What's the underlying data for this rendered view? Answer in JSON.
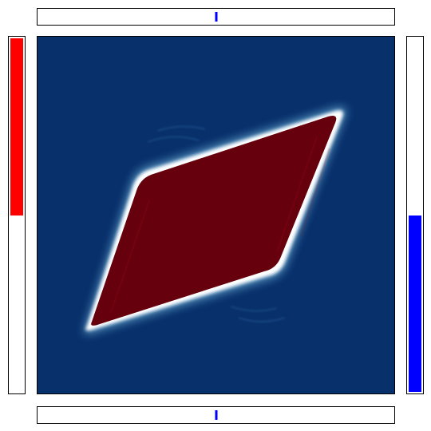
{
  "colors": {
    "background_field": "#08306b",
    "shape_fill": "#67000d",
    "shape_edge": "#ffffff",
    "left_bar_fill": "#ff0000",
    "right_bar_fill": "#0000ff",
    "slider_marker": "#0000ff"
  },
  "top_slider": {
    "value": 0.5
  },
  "bottom_slider": {
    "value": 0.5
  },
  "left_bar": {
    "level": 0.5,
    "anchor": "top"
  },
  "right_bar": {
    "level": 0.5,
    "anchor": "bottom"
  },
  "main_plot": {
    "colormap": "RdBu",
    "shape": "parallelogram-field"
  }
}
